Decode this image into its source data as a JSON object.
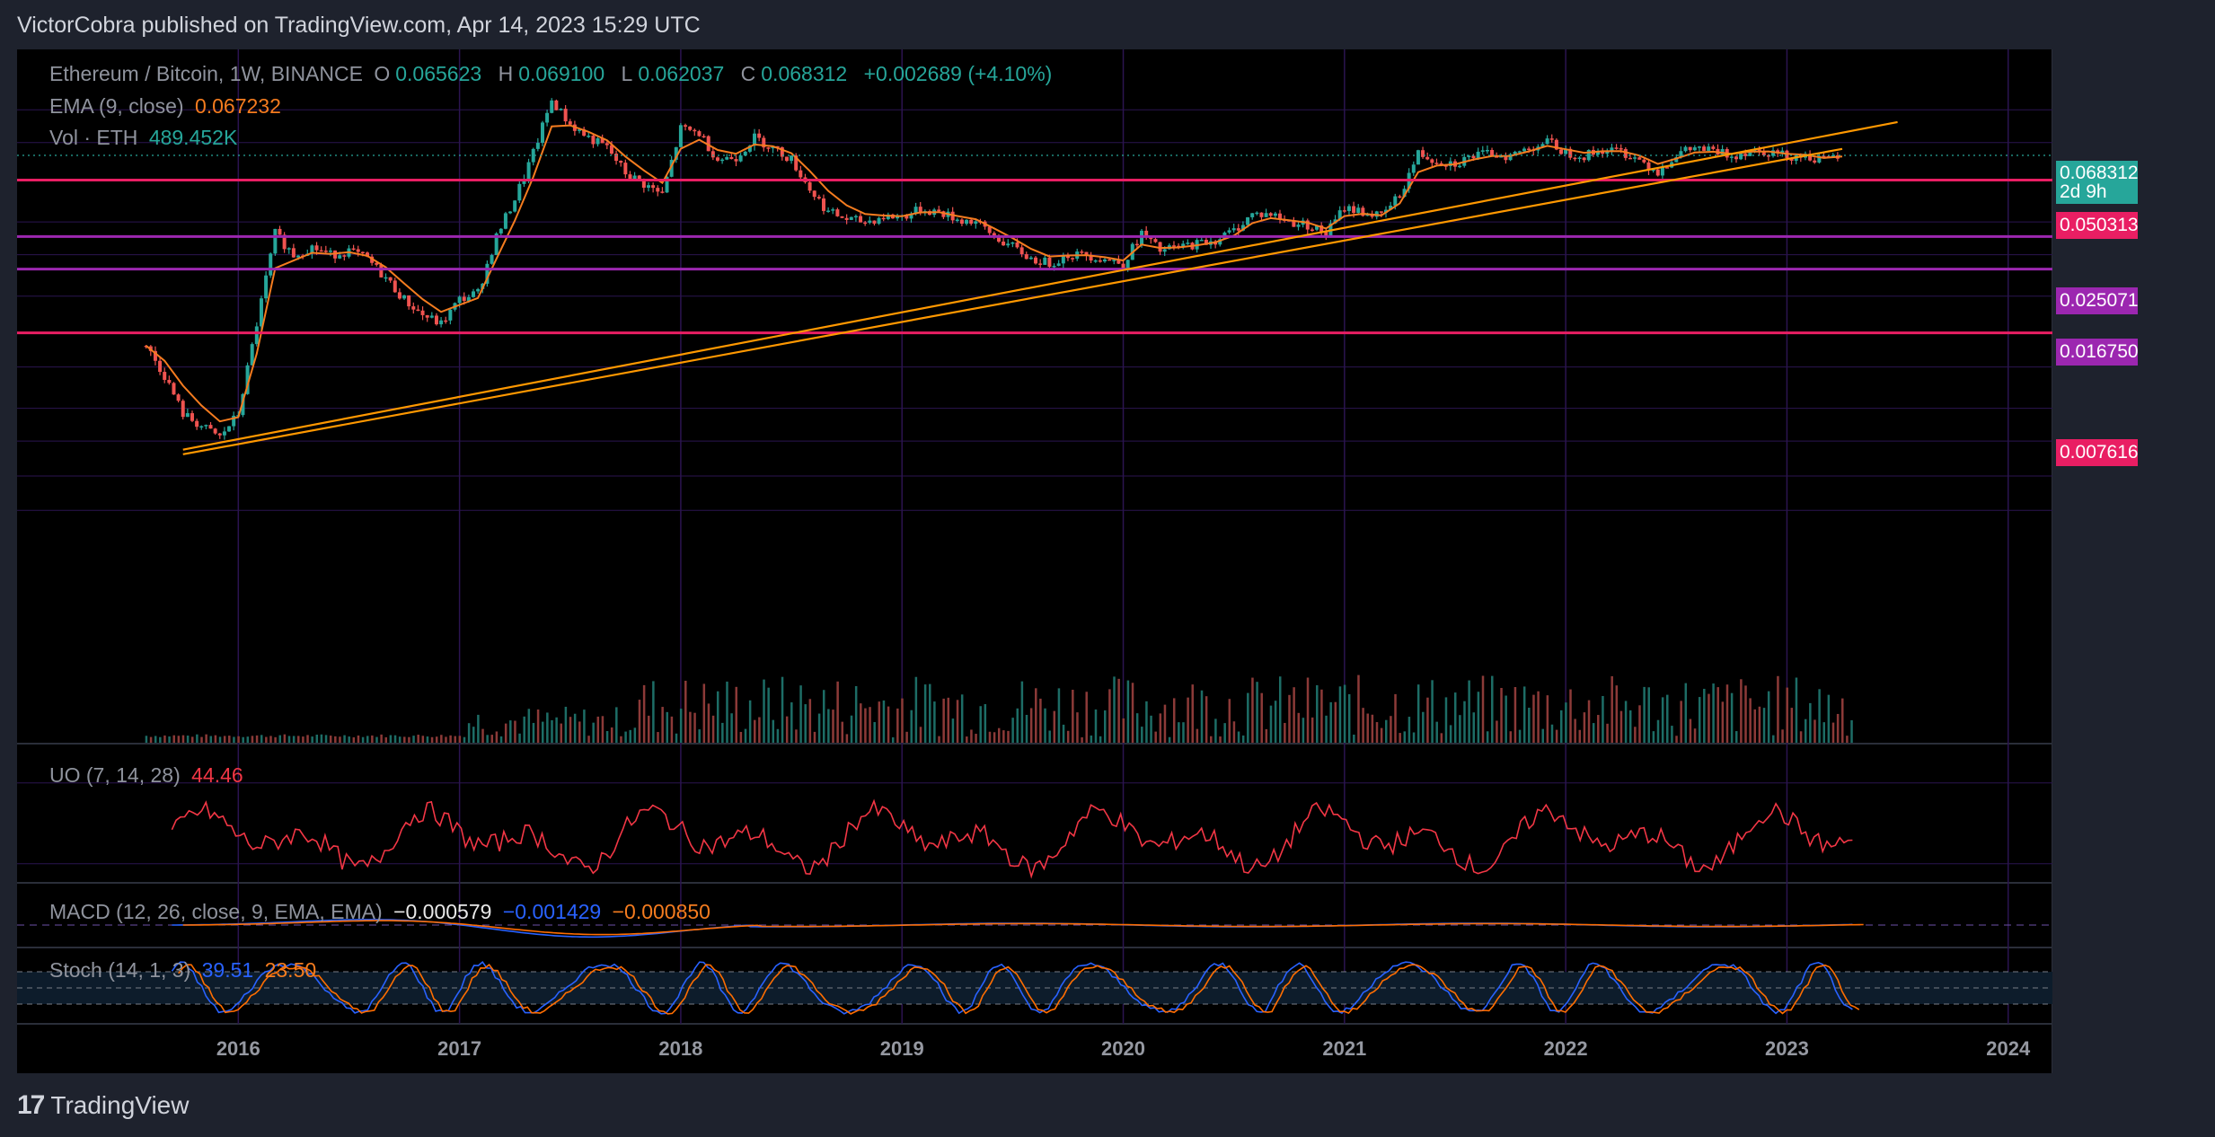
{
  "publisher": "VictorCobra published on TradingView.com, Apr 14, 2023 15:29 UTC",
  "brand": {
    "logo": "17",
    "name": "TradingView"
  },
  "legend": {
    "symbol": "Ethereum / Bitcoin, 1W, BINANCE",
    "o_label": "O",
    "o_value": "0.065623",
    "h_label": "H",
    "h_value": "0.069100",
    "l_label": "L",
    "l_value": "0.062037",
    "c_label": "C",
    "c_value": "0.068312",
    "change": "+0.002689 (+4.10%)",
    "ema_label": "EMA (9, close)",
    "ema_value": "0.067232",
    "vol_label": "Vol · ETH",
    "vol_value": "489.452K",
    "uo_label": "UO (7, 14, 28)",
    "uo_value": "44.46",
    "macd_label": "MACD (12, 26, close, 9, EMA, EMA)",
    "macd_hist": "−0.000579",
    "macd_line": "−0.001429",
    "macd_signal": "−0.000850",
    "stoch_label": "Stoch (14, 1, 3)",
    "stoch_k": "39.51",
    "stoch_d": "23.50"
  },
  "colors": {
    "up": "#26a69a",
    "down": "#ef5350",
    "ema": "#f57c1f",
    "trend": "#ff9800",
    "support_red": "#e91e63",
    "support_purple": "#9c27b0",
    "uo": "#f23645",
    "macd": "#2962ff",
    "signal": "#ff6d00",
    "stoch_k": "#2962ff",
    "stoch_d": "#ff6d00"
  },
  "chart_data": {
    "type": "candlestick",
    "title": "Ethereum / Bitcoin, 1W, BINANCE",
    "y_unit": "BTC",
    "y_scale": "log",
    "y_ticks": [
      "0.120000",
      "0.080000",
      "0.050000",
      "0.030000",
      "0.020000",
      "0.012000",
      "0.005000",
      "0.003000",
      "0.002000",
      "0.001300",
      "0.000850"
    ],
    "x_ticks": [
      "2016",
      "2017",
      "2018",
      "2019",
      "2020",
      "2021",
      "2022",
      "2023",
      "2024"
    ],
    "price_series": [
      {
        "date": "2015-08",
        "close": 0.0065
      },
      {
        "date": "2015-09",
        "close": 0.0045
      },
      {
        "date": "2015-10",
        "close": 0.0028
      },
      {
        "date": "2015-11",
        "close": 0.0024
      },
      {
        "date": "2015-12",
        "close": 0.0021
      },
      {
        "date": "2016-01",
        "close": 0.0028
      },
      {
        "date": "2016-02",
        "close": 0.0085
      },
      {
        "date": "2016-03",
        "close": 0.026
      },
      {
        "date": "2016-04",
        "close": 0.02
      },
      {
        "date": "2016-05",
        "close": 0.022
      },
      {
        "date": "2016-06",
        "close": 0.02
      },
      {
        "date": "2016-07",
        "close": 0.021
      },
      {
        "date": "2016-08",
        "close": 0.019
      },
      {
        "date": "2016-09",
        "close": 0.015
      },
      {
        "date": "2016-10",
        "close": 0.0115
      },
      {
        "date": "2016-11",
        "close": 0.0095
      },
      {
        "date": "2016-12",
        "close": 0.0085
      },
      {
        "date": "2017-01",
        "close": 0.0115
      },
      {
        "date": "2017-02",
        "close": 0.0125
      },
      {
        "date": "2017-03",
        "close": 0.025
      },
      {
        "date": "2017-04",
        "close": 0.04
      },
      {
        "date": "2017-05",
        "close": 0.07
      },
      {
        "date": "2017-06",
        "close": 0.135
      },
      {
        "date": "2017-07",
        "close": 0.1
      },
      {
        "date": "2017-08",
        "close": 0.085
      },
      {
        "date": "2017-09",
        "close": 0.075
      },
      {
        "date": "2017-10",
        "close": 0.055
      },
      {
        "date": "2017-11",
        "close": 0.048
      },
      {
        "date": "2017-12",
        "close": 0.042
      },
      {
        "date": "2018-01",
        "close": 0.095
      },
      {
        "date": "2018-02",
        "close": 0.09
      },
      {
        "date": "2018-03",
        "close": 0.065
      },
      {
        "date": "2018-04",
        "close": 0.067
      },
      {
        "date": "2018-05",
        "close": 0.085
      },
      {
        "date": "2018-06",
        "close": 0.075
      },
      {
        "date": "2018-07",
        "close": 0.065
      },
      {
        "date": "2018-08",
        "close": 0.045
      },
      {
        "date": "2018-09",
        "close": 0.034
      },
      {
        "date": "2018-10",
        "close": 0.031
      },
      {
        "date": "2018-11",
        "close": 0.03
      },
      {
        "date": "2018-12",
        "close": 0.032
      },
      {
        "date": "2019-01",
        "close": 0.032
      },
      {
        "date": "2019-02",
        "close": 0.035
      },
      {
        "date": "2019-03",
        "close": 0.034
      },
      {
        "date": "2019-04",
        "close": 0.031
      },
      {
        "date": "2019-05",
        "close": 0.03
      },
      {
        "date": "2019-06",
        "close": 0.025
      },
      {
        "date": "2019-07",
        "close": 0.022
      },
      {
        "date": "2019-08",
        "close": 0.019
      },
      {
        "date": "2019-09",
        "close": 0.018
      },
      {
        "date": "2019-10",
        "close": 0.02
      },
      {
        "date": "2019-11",
        "close": 0.02
      },
      {
        "date": "2019-12",
        "close": 0.019
      },
      {
        "date": "2020-01",
        "close": 0.018
      },
      {
        "date": "2020-02",
        "close": 0.026
      },
      {
        "date": "2020-03",
        "close": 0.021
      },
      {
        "date": "2020-04",
        "close": 0.022
      },
      {
        "date": "2020-05",
        "close": 0.023
      },
      {
        "date": "2020-06",
        "close": 0.024
      },
      {
        "date": "2020-07",
        "close": 0.027
      },
      {
        "date": "2020-08",
        "close": 0.033
      },
      {
        "date": "2020-09",
        "close": 0.033
      },
      {
        "date": "2020-10",
        "close": 0.03
      },
      {
        "date": "2020-11",
        "close": 0.029
      },
      {
        "date": "2020-12",
        "close": 0.026
      },
      {
        "date": "2021-01",
        "close": 0.036
      },
      {
        "date": "2021-02",
        "close": 0.034
      },
      {
        "date": "2021-03",
        "close": 0.032
      },
      {
        "date": "2021-04",
        "close": 0.042
      },
      {
        "date": "2021-05",
        "close": 0.07
      },
      {
        "date": "2021-06",
        "close": 0.064
      },
      {
        "date": "2021-07",
        "close": 0.062
      },
      {
        "date": "2021-08",
        "close": 0.068
      },
      {
        "date": "2021-09",
        "close": 0.07
      },
      {
        "date": "2021-10",
        "close": 0.068
      },
      {
        "date": "2021-11",
        "close": 0.075
      },
      {
        "date": "2021-12",
        "close": 0.081
      },
      {
        "date": "2022-01",
        "close": 0.071
      },
      {
        "date": "2022-02",
        "close": 0.068
      },
      {
        "date": "2022-03",
        "close": 0.073
      },
      {
        "date": "2022-04",
        "close": 0.072
      },
      {
        "date": "2022-05",
        "close": 0.065
      },
      {
        "date": "2022-06",
        "close": 0.056
      },
      {
        "date": "2022-07",
        "close": 0.069
      },
      {
        "date": "2022-08",
        "close": 0.075
      },
      {
        "date": "2022-09",
        "close": 0.072
      },
      {
        "date": "2022-10",
        "close": 0.068
      },
      {
        "date": "2022-11",
        "close": 0.073
      },
      {
        "date": "2022-12",
        "close": 0.072
      },
      {
        "date": "2023-01",
        "close": 0.068
      },
      {
        "date": "2023-02",
        "close": 0.068
      },
      {
        "date": "2023-03",
        "close": 0.064
      },
      {
        "date": "2023-04",
        "close": 0.068312
      }
    ],
    "last": {
      "price": "0.068312",
      "countdown": "2d 9h"
    },
    "horizontal_levels": [
      {
        "value": 0.050313,
        "label": "0.050313",
        "color": "#e91e63"
      },
      {
        "value": 0.025071,
        "label": "0.025071",
        "color": "#9c27b0"
      },
      {
        "value": 0.01675,
        "label": "0.016750",
        "color": "#9c27b0"
      },
      {
        "value": 0.007616,
        "label": "0.007616",
        "color": "#e91e63"
      }
    ],
    "trendlines": [
      {
        "from": {
          "date": "2015-10",
          "price": 0.0018
        },
        "to": {
          "date": "2023-07",
          "price": 0.103
        }
      },
      {
        "from": {
          "date": "2015-10",
          "price": 0.0017
        },
        "to": {
          "date": "2023-04",
          "price": 0.074
        }
      }
    ],
    "uo": {
      "y_ticks": [
        "80.00",
        "40.00"
      ],
      "last": 44.46
    },
    "macd": {
      "y_ticks": [
        "0.000000"
      ]
    },
    "stoch": {
      "y_ticks": [
        "100.00",
        "0.00"
      ],
      "bands": [
        80,
        50,
        20
      ]
    }
  }
}
